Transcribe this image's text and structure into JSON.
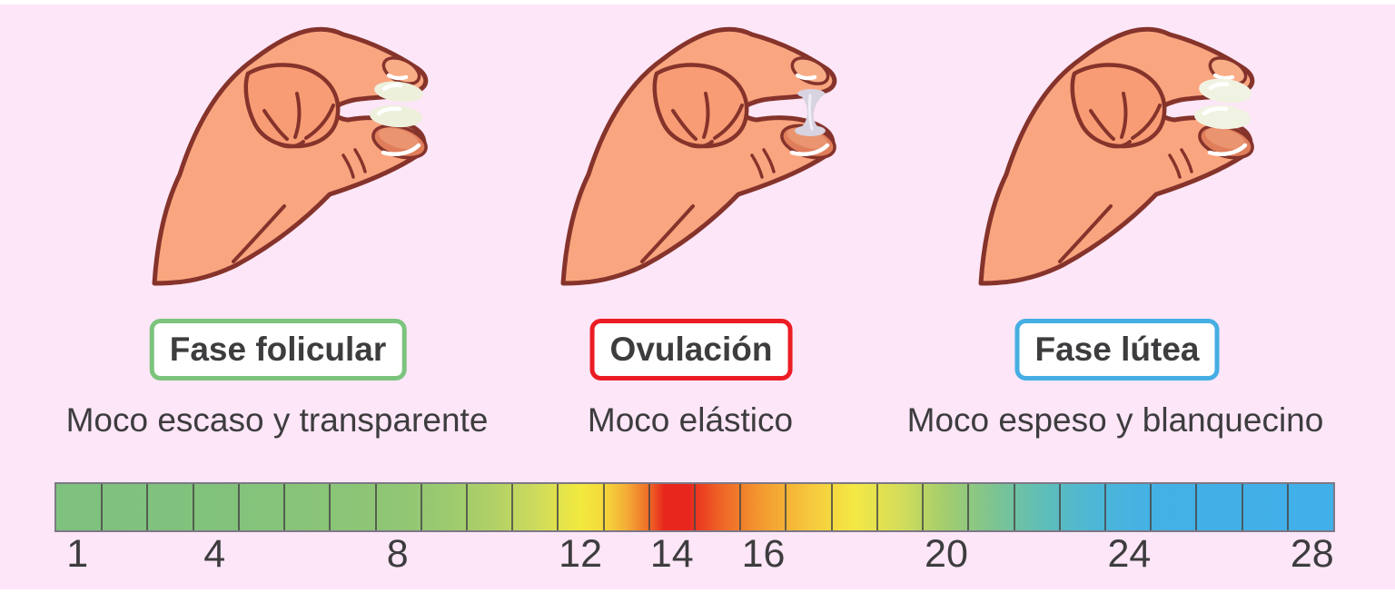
{
  "theme": {
    "background": "#fce6f7",
    "edge_strip": "#ffffff",
    "text_color": "#3d3c3e",
    "skin": "#f9a57f",
    "skin_shade": "#f89c75",
    "outline": "#85332b",
    "thumb_nail": "#e07e5b",
    "index_nail": "#f8ad87",
    "mucus": "#edf0db",
    "mucus_thick": "#f1f3e2",
    "mucus_strand": "#d8d3e1"
  },
  "phases": [
    {
      "label": "Fase folicular",
      "description": "Moco escaso y transparente",
      "border_color": "#7cc47d",
      "mucus_type": "scant-transparent-drops"
    },
    {
      "label": "Ovulación",
      "description": "Moco elástico",
      "border_color": "#ec1c24",
      "mucus_type": "elastic-stretching-strand"
    },
    {
      "label": "Fase lútea",
      "description": "Moco espeso y blanquecino",
      "border_color": "#45aee2",
      "mucus_type": "thick-whitish-drops"
    }
  ],
  "cycle_scale": {
    "days_total": 28,
    "tick_days": [
      1,
      4,
      8,
      12,
      14,
      16,
      20,
      24,
      28
    ],
    "tick_labels": [
      "1",
      "4",
      "8",
      "12",
      "14",
      "16",
      "20",
      "24",
      "28"
    ],
    "cell_border_color": "rgba(70,70,70,0.8)",
    "outer_border_color": "#7e7886",
    "gradient_stops": [
      {
        "pos": 1.79,
        "color": "#7fc17f"
      },
      {
        "pos": 12.5,
        "color": "#81c27c"
      },
      {
        "pos": 26.79,
        "color": "#90c675"
      },
      {
        "pos": 30.36,
        "color": "#9bca70"
      },
      {
        "pos": 33.93,
        "color": "#afd067"
      },
      {
        "pos": 37.5,
        "color": "#cdda5d"
      },
      {
        "pos": 41.07,
        "color": "#f3ea3e"
      },
      {
        "pos": 42.86,
        "color": "#f5d93b"
      },
      {
        "pos": 44.64,
        "color": "#f4ad36"
      },
      {
        "pos": 46.43,
        "color": "#ef6a26"
      },
      {
        "pos": 47.6,
        "color": "#e8261e"
      },
      {
        "pos": 49.5,
        "color": "#e8261e"
      },
      {
        "pos": 51.79,
        "color": "#ee5f25"
      },
      {
        "pos": 55.36,
        "color": "#f39c30"
      },
      {
        "pos": 58.93,
        "color": "#f6c73c"
      },
      {
        "pos": 62.5,
        "color": "#f4e845"
      },
      {
        "pos": 66.07,
        "color": "#d4dd5a"
      },
      {
        "pos": 69.64,
        "color": "#a3cd6e"
      },
      {
        "pos": 73.21,
        "color": "#7fc48f"
      },
      {
        "pos": 76.79,
        "color": "#62bfb4"
      },
      {
        "pos": 80.36,
        "color": "#50b8d1"
      },
      {
        "pos": 83.93,
        "color": "#47b3e0"
      },
      {
        "pos": 87.5,
        "color": "#43b0e6"
      },
      {
        "pos": 98.21,
        "color": "#41afe8"
      }
    ]
  }
}
